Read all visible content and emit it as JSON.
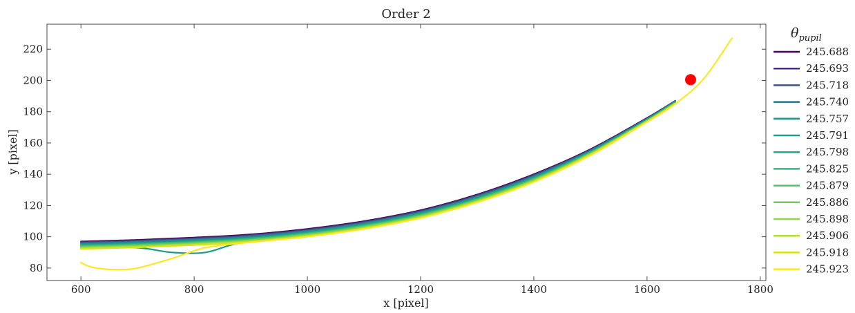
{
  "chart_data": {
    "type": "line",
    "title": "Order 2",
    "xlabel": "x [pixel]",
    "ylabel": "y [pixel]",
    "xlim": [
      540,
      1810
    ],
    "ylim": [
      72,
      236
    ],
    "xticks": [
      600,
      800,
      1000,
      1200,
      1400,
      1600,
      1800
    ],
    "yticks": [
      80,
      100,
      120,
      140,
      160,
      180,
      200,
      220
    ],
    "grid": false,
    "legend": {
      "title": "θ",
      "title_subscript": "pupil",
      "placement": "right-outside"
    },
    "series": [
      {
        "name": "245.688",
        "color": "#440154",
        "x": [
          600,
          700,
          800,
          900,
          1000,
          1100,
          1200,
          1300,
          1400,
          1500,
          1600,
          1650
        ],
        "y": [
          97,
          98,
          99.5,
          101.5,
          105,
          110,
          117,
          127,
          140,
          156,
          176,
          187
        ]
      },
      {
        "name": "245.693",
        "color": "#472d7b",
        "x": [
          600,
          700,
          800,
          900,
          1000,
          1100,
          1200,
          1300,
          1400,
          1500,
          1600,
          1650
        ],
        "y": [
          96.6,
          97.6,
          99.1,
          101.1,
          104.6,
          109.6,
          116.6,
          126.6,
          139.6,
          155.7,
          175.8,
          186.9
        ]
      },
      {
        "name": "245.718",
        "color": "#3b528b",
        "x": [
          600,
          700,
          800,
          900,
          1000,
          1100,
          1200,
          1300,
          1400,
          1500,
          1600,
          1650
        ],
        "y": [
          96.2,
          97.2,
          98.7,
          100.7,
          104.2,
          109.2,
          116.2,
          126.2,
          139.2,
          155.4,
          175.6,
          186.8
        ]
      },
      {
        "name": "245.740",
        "color": "#2c728e",
        "x": [
          600,
          700,
          800,
          900,
          1000,
          1100,
          1200,
          1300,
          1400,
          1500,
          1600,
          1650
        ],
        "y": [
          95.8,
          96.8,
          98.3,
          100.3,
          103.8,
          108.8,
          115.8,
          125.8,
          138.8,
          155.1,
          175.4,
          186.7
        ]
      },
      {
        "name": "245.757",
        "color": "#21918c",
        "x": [
          600,
          700,
          800,
          900,
          1000,
          1100,
          1200,
          1300,
          1400,
          1500,
          1600,
          1650
        ],
        "y": [
          95.4,
          96.4,
          97.9,
          99.9,
          103.4,
          108.4,
          115.4,
          125.4,
          138.4,
          154.8,
          175.2,
          186.6
        ]
      },
      {
        "name": "245.791",
        "color": "#1e9b8a",
        "x": [
          600,
          700,
          760,
          820,
          880,
          1000,
          1100,
          1200,
          1300,
          1400,
          1500,
          1600,
          1650
        ],
        "y": [
          93.5,
          93,
          90,
          90,
          96,
          103,
          108,
          115,
          125,
          138,
          154.5,
          175,
          186.4
        ]
      },
      {
        "name": "245.798",
        "color": "#25a584",
        "x": [
          600,
          700,
          800,
          900,
          1000,
          1100,
          1200,
          1300,
          1400,
          1500,
          1600,
          1650
        ],
        "y": [
          94.6,
          95.6,
          97.1,
          99.1,
          102.6,
          107.6,
          114.6,
          124.6,
          137.6,
          154.2,
          174.8,
          186.2
        ]
      },
      {
        "name": "245.825",
        "color": "#35b779",
        "x": [
          600,
          700,
          800,
          900,
          1000,
          1100,
          1200,
          1300,
          1400,
          1500,
          1600,
          1650
        ],
        "y": [
          94.2,
          95.2,
          96.7,
          98.7,
          102.2,
          107.2,
          114.2,
          124.2,
          137.2,
          153.9,
          174.6,
          186
        ]
      },
      {
        "name": "245.879",
        "color": "#4ec36b",
        "x": [
          600,
          700,
          800,
          900,
          1000,
          1100,
          1200,
          1300,
          1400,
          1500,
          1600,
          1650
        ],
        "y": [
          93.8,
          94.8,
          96.3,
          98.3,
          101.8,
          106.8,
          113.8,
          123.8,
          136.8,
          153.6,
          174.4,
          185.8
        ]
      },
      {
        "name": "245.886",
        "color": "#6ccd5a",
        "x": [
          600,
          700,
          800,
          900,
          1000,
          1100,
          1200,
          1300,
          1400,
          1500,
          1600,
          1650
        ],
        "y": [
          93.4,
          94.4,
          95.9,
          97.9,
          101.4,
          106.4,
          113.4,
          123.4,
          136.4,
          153.3,
          174.2,
          185.6
        ]
      },
      {
        "name": "245.898",
        "color": "#8fd744",
        "x": [
          600,
          700,
          800,
          900,
          1000,
          1100,
          1200,
          1300,
          1400,
          1500,
          1600,
          1650
        ],
        "y": [
          93,
          94,
          95.5,
          97.5,
          101,
          106,
          113,
          123,
          136,
          153,
          174,
          185.4
        ]
      },
      {
        "name": "245.906",
        "color": "#b5de2b",
        "x": [
          600,
          700,
          800,
          900,
          1000,
          1100,
          1200,
          1300,
          1400,
          1500,
          1600,
          1650
        ],
        "y": [
          92.6,
          93.6,
          95.1,
          97.1,
          100.6,
          105.6,
          112.6,
          122.6,
          135.6,
          152.7,
          173.8,
          185.2
        ]
      },
      {
        "name": "245.918",
        "color": "#d8e219",
        "x": [
          600,
          700,
          800,
          900,
          1000,
          1100,
          1200,
          1300,
          1400,
          1500,
          1600,
          1650
        ],
        "y": [
          92.2,
          93.2,
          94.7,
          96.7,
          100.2,
          105.2,
          112.2,
          122.2,
          135.2,
          152.4,
          173.6,
          185
        ]
      },
      {
        "name": "245.923",
        "color": "#fde725",
        "x": [
          600,
          620,
          660,
          700,
          760,
          820,
          900,
          1000,
          1100,
          1200,
          1300,
          1400,
          1500,
          1600,
          1650,
          1700,
          1750
        ],
        "y": [
          83.5,
          80.5,
          79,
          80,
          86,
          93,
          96.5,
          100,
          105,
          112,
          122,
          135,
          152,
          173.4,
          185,
          201,
          227
        ]
      }
    ],
    "marker": {
      "x": 1677,
      "y": 200.5,
      "color": "#ff0000"
    }
  }
}
